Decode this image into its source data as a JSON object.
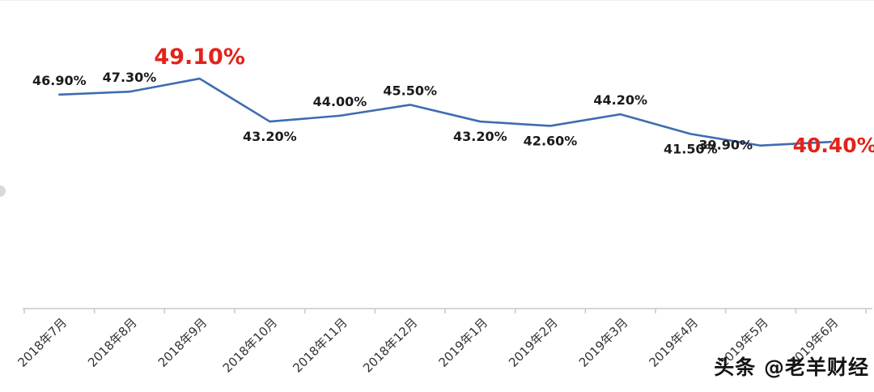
{
  "chart_data": {
    "type": "line",
    "title": "",
    "xlabel": "",
    "ylabel": "",
    "categories": [
      "2018年7月",
      "2018年8月",
      "2018年9月",
      "2018年10月",
      "2018年11月",
      "2018年12月",
      "2019年1月",
      "2019年2月",
      "2019年3月",
      "2019年4月",
      "2019年5月",
      "2019年6月"
    ],
    "values": [
      46.9,
      47.3,
      49.1,
      43.2,
      44.0,
      45.5,
      43.2,
      42.6,
      44.2,
      41.5,
      39.9,
      40.4
    ],
    "labels": [
      "46.90%",
      "47.30%",
      "49.10%",
      "43.20%",
      "44.00%",
      "45.50%",
      "43.20%",
      "42.60%",
      "44.20%",
      "41.50%",
      "39.90%",
      "40.40%"
    ],
    "highlight_indices": [
      2,
      11
    ],
    "ylim": [
      17.5,
      52
    ],
    "grid": false,
    "legend": "none",
    "colors": {
      "line": "#3e6cb1",
      "label": "#1a1a1a",
      "highlight": "#e2231a",
      "axis": "#c9c9c9",
      "tick_label": "#333333"
    }
  },
  "watermark": {
    "text": "头条 @老羊财经"
  }
}
